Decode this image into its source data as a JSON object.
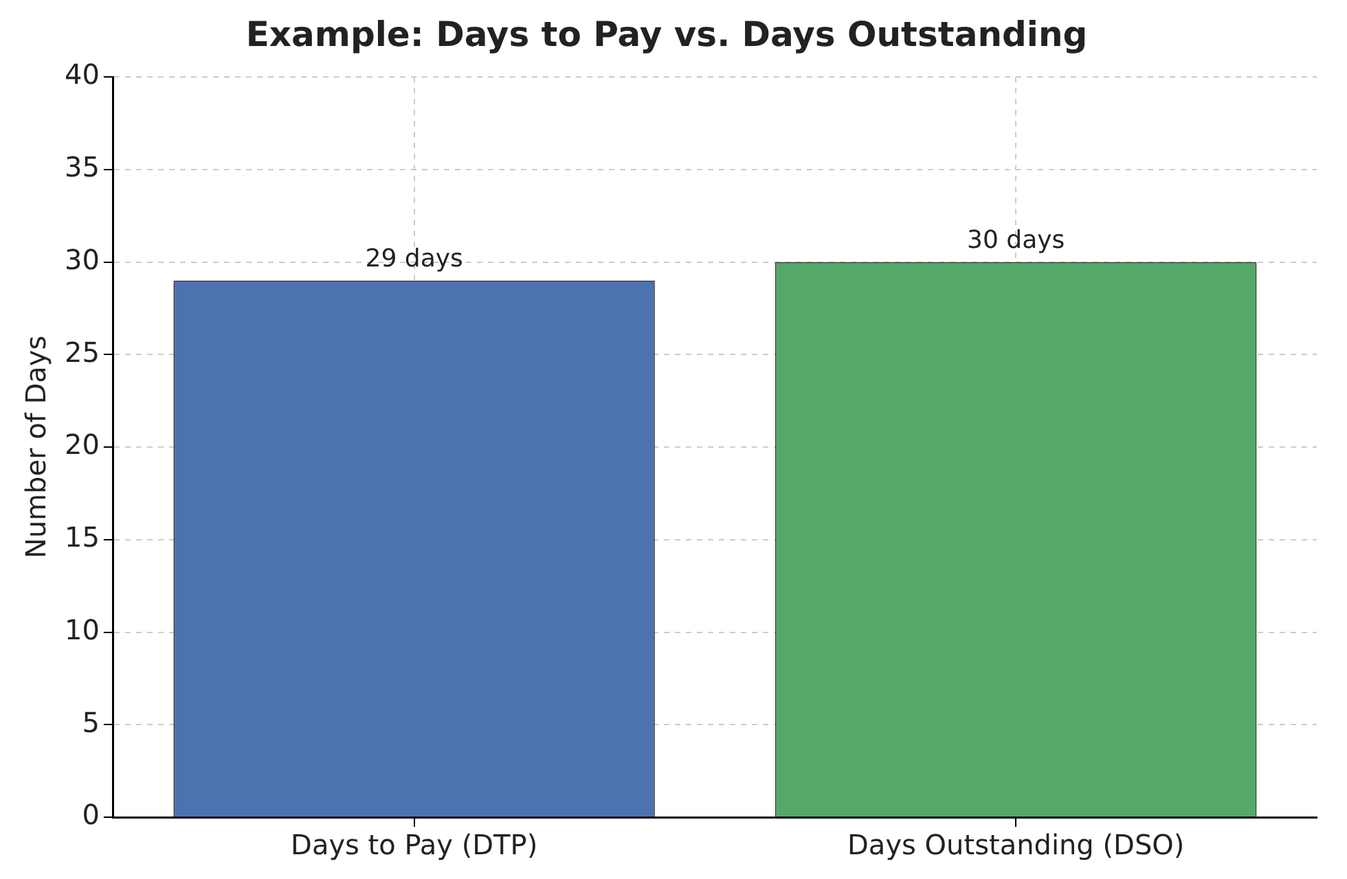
{
  "chart_data": {
    "type": "bar",
    "title": "Example: Days to Pay vs. Days Outstanding",
    "ylabel": "Number of Days",
    "categories": [
      "Days to Pay (DTP)",
      "Days Outstanding (DSO)"
    ],
    "values": [
      29,
      30
    ],
    "colors": [
      "#4c72b0",
      "#55a868"
    ],
    "value_labels": [
      "29 days",
      "30 days"
    ],
    "ylim": [
      0,
      40
    ],
    "yticks": [
      0,
      5,
      10,
      15,
      20,
      25,
      30,
      35,
      40
    ],
    "grid": true
  }
}
